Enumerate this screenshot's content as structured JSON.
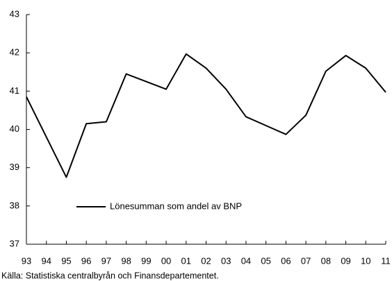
{
  "chart_data": {
    "type": "line",
    "categories": [
      "93",
      "94",
      "95",
      "96",
      "97",
      "98",
      "99",
      "00",
      "01",
      "02",
      "03",
      "04",
      "05",
      "06",
      "07",
      "08",
      "09",
      "10",
      "11"
    ],
    "series": [
      {
        "name": "Lönesumman som andel av BNP",
        "color": "#000000",
        "values": [
          40.85,
          39.8,
          38.75,
          40.15,
          40.2,
          41.45,
          41.25,
          41.05,
          41.97,
          41.6,
          41.05,
          40.33,
          40.1,
          39.87,
          40.37,
          41.52,
          41.93,
          41.6,
          40.97
        ]
      }
    ],
    "ylim": [
      37,
      43
    ],
    "yticks": [
      37,
      38,
      39,
      40,
      41,
      42,
      43
    ],
    "source": "Källa: Statistiska centralbyrån och Finansdepartementet."
  }
}
